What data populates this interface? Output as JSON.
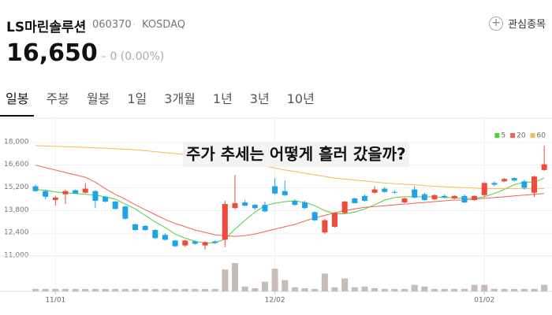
{
  "header": {
    "name": "LS마린솔루션",
    "code": "060370",
    "market": "KOSDAQ",
    "watch_label": "관심종목",
    "price": "16,650",
    "change": "0 (0.00%)"
  },
  "tabs": [
    "일봉",
    "주봉",
    "월봉",
    "1일",
    "3개월",
    "1년",
    "3년",
    "10년"
  ],
  "active_tab": 0,
  "chart_data": {
    "type": "candlestick",
    "annotation": "주가 추세는 어떻게 흘러 갔을까?",
    "categories": [
      null,
      null,
      "11/01",
      null,
      null,
      null,
      null,
      null,
      null,
      null,
      null,
      null,
      null,
      null,
      null,
      null,
      null,
      null,
      null,
      null,
      null,
      null,
      null,
      null,
      "12/02",
      null,
      null,
      null,
      null,
      null,
      null,
      null,
      null,
      null,
      null,
      null,
      null,
      null,
      null,
      null,
      null,
      null,
      null,
      null,
      null,
      "01/02",
      null,
      null,
      null,
      null,
      null,
      null
    ],
    "open": [
      15300,
      15000,
      14450,
      14800,
      15050,
      14900,
      15000,
      14650,
      14350,
      14050,
      12950,
      12850,
      12600,
      12300,
      11950,
      11650,
      11900,
      11650,
      11900,
      12000,
      13950,
      14300,
      14150,
      14150,
      15300,
      15000,
      14400,
      14300,
      13700,
      12450,
      12800,
      13650,
      14550,
      14700,
      14900,
      15150,
      14950,
      14300,
      15100,
      14800,
      14500,
      14700,
      14550,
      14700,
      14450,
      14750,
      15500,
      15600,
      15800,
      15600,
      14900,
      16300
    ],
    "high": [
      15400,
      15050,
      14700,
      15100,
      15100,
      15500,
      15050,
      14700,
      14400,
      14100,
      13000,
      12900,
      12650,
      12400,
      12000,
      12000,
      11950,
      11900,
      11950,
      14400,
      16000,
      14450,
      14200,
      14350,
      15800,
      15650,
      14500,
      14400,
      13750,
      13300,
      13700,
      14400,
      14600,
      14800,
      15300,
      15250,
      15050,
      14600,
      15300,
      14900,
      14800,
      14800,
      14750,
      14800,
      14750,
      15550,
      15600,
      15800,
      15850,
      15700,
      15950,
      17800
    ],
    "low": [
      14950,
      14500,
      14100,
      14200,
      14850,
      14850,
      13950,
      14300,
      13850,
      13250,
      12550,
      12550,
      12050,
      11950,
      11550,
      11550,
      11700,
      11400,
      11750,
      11550,
      13900,
      14100,
      13850,
      13700,
      14800,
      14700,
      14100,
      13900,
      13150,
      12350,
      12750,
      13600,
      14250,
      14350,
      14850,
      14900,
      14850,
      14250,
      14550,
      14400,
      14450,
      14550,
      14500,
      14250,
      14400,
      14650,
      15300,
      15550,
      15600,
      15100,
      14650,
      16250
    ],
    "close": [
      15000,
      14650,
      14600,
      15000,
      14850,
      15150,
      14400,
      14350,
      13900,
      13300,
      12600,
      12600,
      12100,
      12000,
      11600,
      11950,
      11750,
      11850,
      11800,
      14200,
      14250,
      14100,
      13950,
      13750,
      14850,
      14750,
      14150,
      13950,
      13200,
      13200,
      13650,
      14350,
      14250,
      14400,
      15100,
      14950,
      14900,
      14550,
      14600,
      14450,
      14750,
      14600,
      14700,
      14300,
      14700,
      15500,
      15400,
      15750,
      15650,
      15200,
      15900,
      16650
    ],
    "volume": [
      3,
      3,
      3,
      3,
      3,
      3,
      3,
      3,
      3,
      3,
      3,
      3,
      3,
      3,
      3,
      3,
      3,
      3,
      3,
      27,
      35,
      6,
      4,
      12,
      28,
      14,
      5,
      4,
      3,
      22,
      5,
      16,
      5,
      6,
      4,
      3,
      3,
      3,
      8,
      6,
      3,
      3,
      3,
      3,
      8,
      8,
      3,
      3,
      3,
      3,
      3,
      8
    ],
    "up_color": "#ef4a3c",
    "down_color": "#1fa4e8",
    "volume_color": "#c8bcb6",
    "series": [
      {
        "name": "5",
        "color": "#4cd23e",
        "values": [
          15100,
          15050,
          14950,
          14900,
          14850,
          14800,
          14750,
          14650,
          14500,
          14200,
          13900,
          13500,
          13100,
          12750,
          12350,
          12100,
          11900,
          11800,
          11800,
          12050,
          12650,
          13200,
          13700,
          14100,
          14250,
          14350,
          14400,
          14300,
          14100,
          13800,
          13600,
          13600,
          13700,
          13900,
          14150,
          14450,
          14600,
          14650,
          14650,
          14650,
          14650,
          14600,
          14600,
          14550,
          14550,
          14650,
          14850,
          15100,
          15400,
          15550,
          15550,
          15800
        ]
      },
      {
        "name": "20",
        "color": "#f0624f",
        "values": [
          16600,
          16450,
          16300,
          16150,
          16000,
          15850,
          15550,
          15150,
          14800,
          14500,
          14150,
          13850,
          13550,
          13250,
          13000,
          12800,
          12600,
          12450,
          12300,
          12250,
          12200,
          12250,
          12350,
          12500,
          12650,
          12800,
          12950,
          13150,
          13350,
          13500,
          13650,
          13800,
          13900,
          14000,
          14050,
          14100,
          14150,
          14200,
          14250,
          14300,
          14350,
          14400,
          14450,
          14450,
          14500,
          14550,
          14600,
          14650,
          14700,
          14750,
          14800,
          14850
        ]
      },
      {
        "name": "60",
        "color": "#f9b955",
        "values": [
          17800,
          17780,
          17760,
          17740,
          17720,
          17700,
          17670,
          17640,
          17610,
          17580,
          17550,
          17490,
          17430,
          17370,
          17310,
          17250,
          17180,
          17110,
          17040,
          16970,
          16900,
          16780,
          16660,
          16540,
          16420,
          16300,
          16200,
          16100,
          16000,
          15900,
          15800,
          15740,
          15680,
          15620,
          15560,
          15500,
          15460,
          15420,
          15380,
          15340,
          15300,
          15270,
          15240,
          15210,
          15180,
          15150,
          15150,
          15150,
          15150,
          15150,
          15150,
          15150
        ]
      }
    ],
    "ylim": [
      11000,
      19500
    ],
    "yticks": [
      {
        "value": 11000,
        "label": "11,000"
      },
      {
        "value": 12400,
        "label": "12,400"
      },
      {
        "value": 13800,
        "label": "13,800"
      },
      {
        "value": 15200,
        "label": "15,200"
      },
      {
        "value": 16600,
        "label": "16,600"
      },
      {
        "value": 18000,
        "label": "18,000"
      }
    ],
    "grid": true,
    "legend": "top-right"
  }
}
